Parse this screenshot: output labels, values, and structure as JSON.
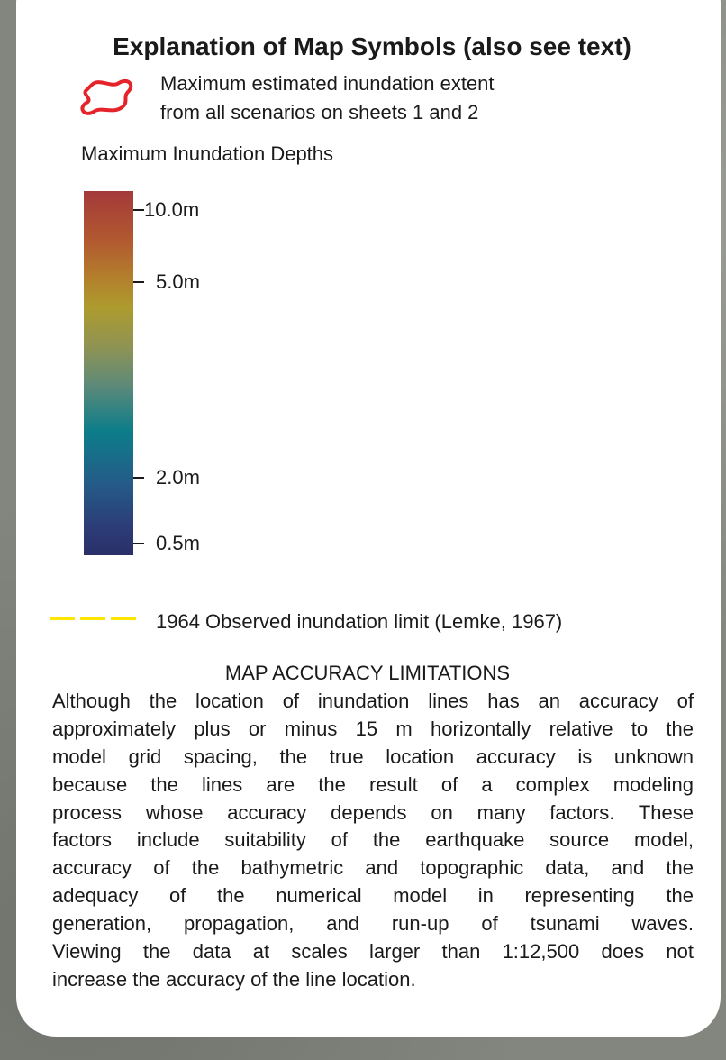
{
  "legend": {
    "title": "Explanation of Map Symbols (also see text)",
    "extent_label": [
      "Maximum estimated inundation extent",
      "from all scenarios on sheets 1 and 2"
    ],
    "depth_title": "Maximum Inundation Depths",
    "depth_ticks": [
      "10.0m",
      "5.0m",
      "2.0m",
      "0.5m"
    ],
    "observed_label": "1964 Observed inundation limit (Lemke, 1967)"
  },
  "accuracy": {
    "heading": "MAP ACCURACY LIMITATIONS",
    "lines": [
      "Although the location of inundation lines has an accuracy of",
      "approximately plus or minus 15 m horizontally relative to the",
      "model grid spacing, the true location accuracy is unknown",
      "because the lines are the result of a complex modeling",
      "process whose accuracy depends on many factors. These",
      "factors include suitability of the earthquake source model,",
      "accuracy of the bathymetric and topographic data, and the",
      "adequacy of the numerical model in representing the",
      "generation, propagation, and run-up of tsunami waves.",
      "Viewing the data at scales larger than 1:12,500 does not",
      "increase the accuracy of the line location."
    ]
  }
}
